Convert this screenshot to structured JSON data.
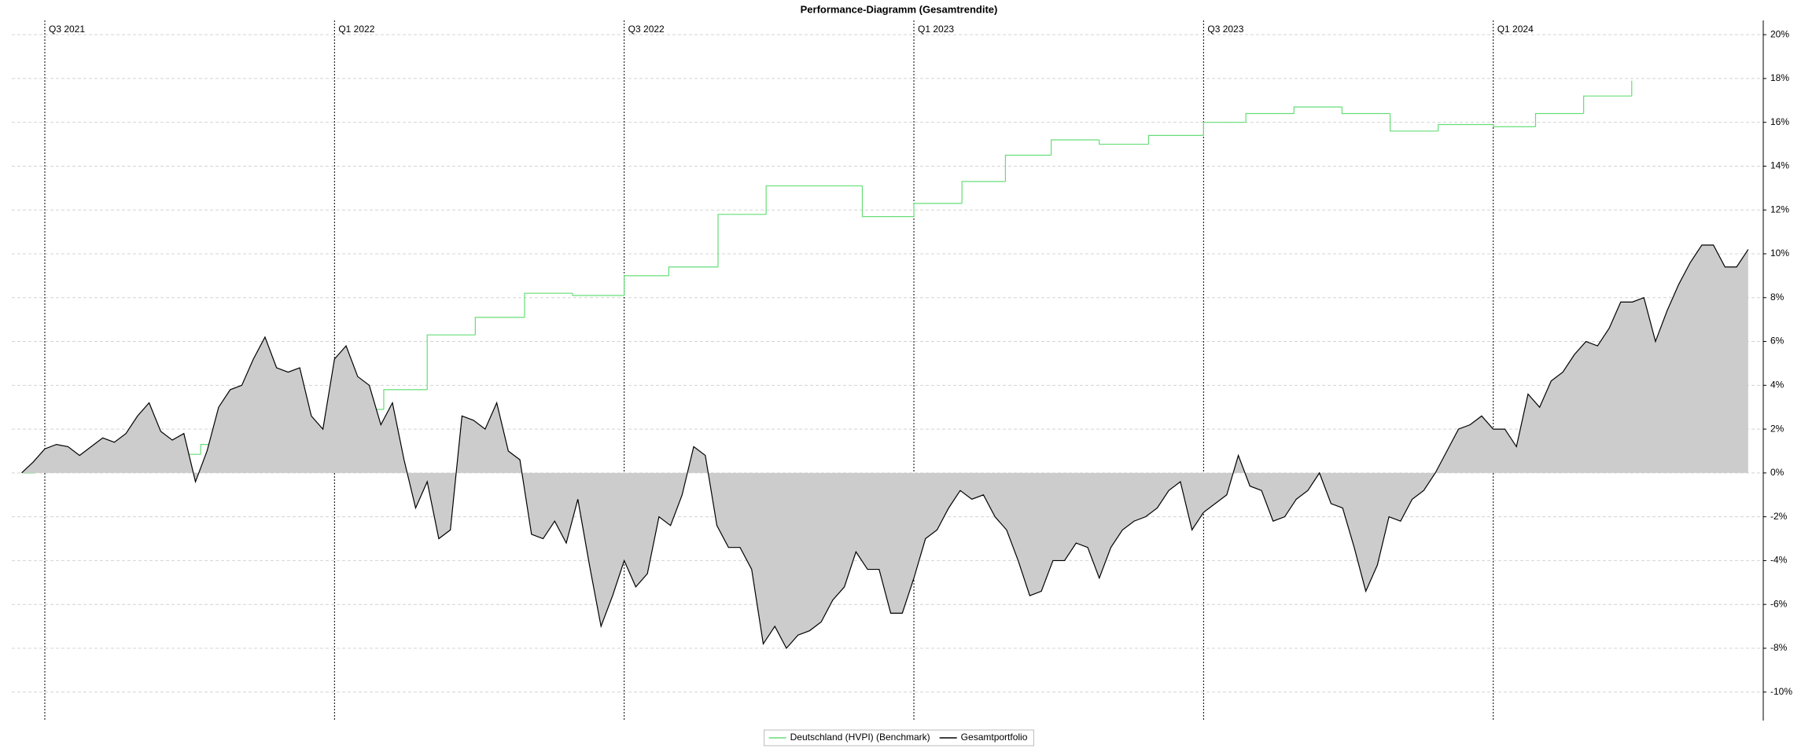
{
  "chart_data": {
    "type": "line",
    "title": "Performance-Diagramm (Gesamtrendite)",
    "xlim": [
      2021.443,
      2024.466
    ],
    "xticks": [
      {
        "value": 2021.5,
        "label": "Q3 2021"
      },
      {
        "value": 2022.0,
        "label": "Q1 2022"
      },
      {
        "value": 2022.5,
        "label": "Q3 2022"
      },
      {
        "value": 2023.0,
        "label": "Q1 2023"
      },
      {
        "value": 2023.5,
        "label": "Q3 2023"
      },
      {
        "value": 2024.0,
        "label": "Q1 2024"
      }
    ],
    "ylim": [
      -11.3,
      20.65
    ],
    "yticks": [
      {
        "value": -10,
        "label": "-10%"
      },
      {
        "value": -8,
        "label": "-8%"
      },
      {
        "value": -6,
        "label": "-6%"
      },
      {
        "value": -4,
        "label": "-4%"
      },
      {
        "value": -2,
        "label": "-2%"
      },
      {
        "value": 0,
        "label": "0%"
      },
      {
        "value": 2,
        "label": "2%"
      },
      {
        "value": 4,
        "label": "4%"
      },
      {
        "value": 6,
        "label": "6%"
      },
      {
        "value": 8,
        "label": "8%"
      },
      {
        "value": 10,
        "label": "10%"
      },
      {
        "value": 12,
        "label": "12%"
      },
      {
        "value": 14,
        "label": "14%"
      },
      {
        "value": 16,
        "label": "16%"
      },
      {
        "value": 18,
        "label": "18%"
      },
      {
        "value": 20,
        "label": "20%"
      }
    ],
    "grid": true,
    "legend": "bottom",
    "series": [
      {
        "name": "Deutschland (HVPI) (Benchmark)",
        "color": "#66dd77",
        "drawstyle": "steps-post",
        "x": [
          2021.462,
          2021.482,
          2021.571,
          2021.67,
          2021.769,
          2021.834,
          2021.917,
          2022.0,
          2022.085,
          2022.16,
          2022.243,
          2022.328,
          2022.411,
          2022.5,
          2022.577,
          2022.662,
          2022.745,
          2022.911,
          2023.0,
          2023.083,
          2023.158,
          2023.237,
          2023.32,
          2023.405,
          2023.5,
          2023.573,
          2023.656,
          2023.739,
          2023.822,
          2023.905,
          2024.0,
          2024.073,
          2024.156,
          2024.239
        ],
        "values": [
          0.0,
          0.5,
          0.6,
          0.85,
          1.3,
          1.6,
          1.9,
          2.9,
          3.8,
          6.3,
          7.1,
          8.2,
          8.1,
          9.0,
          9.4,
          11.8,
          13.1,
          11.7,
          12.3,
          13.3,
          14.5,
          15.2,
          15.0,
          15.4,
          16.0,
          16.4,
          16.7,
          16.4,
          15.6,
          15.9,
          15.8,
          16.4,
          17.2,
          17.9
        ]
      },
      {
        "name": "Gesamtportfolio",
        "color": "#000000",
        "fill": "#cccccc",
        "x": [
          2021.46,
          2021.48,
          2021.5,
          2021.52,
          2021.54,
          2021.56,
          2021.58,
          2021.6,
          2021.62,
          2021.64,
          2021.66,
          2021.68,
          2021.7,
          2021.72,
          2021.74,
          2021.76,
          2021.78,
          2021.8,
          2021.82,
          2021.84,
          2021.86,
          2021.88,
          2021.9,
          2021.92,
          2021.94,
          2021.96,
          2021.98,
          2022.0,
          2022.02,
          2022.04,
          2022.06,
          2022.08,
          2022.1,
          2022.12,
          2022.14,
          2022.16,
          2022.18,
          2022.2,
          2022.22,
          2022.24,
          2022.26,
          2022.28,
          2022.3,
          2022.32,
          2022.34,
          2022.36,
          2022.38,
          2022.4,
          2022.42,
          2022.44,
          2022.46,
          2022.48,
          2022.5,
          2022.52,
          2022.54,
          2022.56,
          2022.58,
          2022.6,
          2022.62,
          2022.64,
          2022.66,
          2022.68,
          2022.7,
          2022.72,
          2022.74,
          2022.76,
          2022.78,
          2022.8,
          2022.82,
          2022.84,
          2022.86,
          2022.88,
          2022.9,
          2022.92,
          2022.94,
          2022.96,
          2022.98,
          2023.0,
          2023.02,
          2023.04,
          2023.06,
          2023.08,
          2023.1,
          2023.12,
          2023.14,
          2023.16,
          2023.18,
          2023.2,
          2023.22,
          2023.24,
          2023.26,
          2023.28,
          2023.3,
          2023.32,
          2023.34,
          2023.36,
          2023.38,
          2023.4,
          2023.42,
          2023.44,
          2023.46,
          2023.48,
          2023.5,
          2023.52,
          2023.54,
          2023.56,
          2023.58,
          2023.6,
          2023.62,
          2023.64,
          2023.66,
          2023.68,
          2023.7,
          2023.72,
          2023.74,
          2023.76,
          2023.78,
          2023.8,
          2023.82,
          2023.84,
          2023.86,
          2023.88,
          2023.9,
          2023.92,
          2023.94,
          2023.96,
          2023.98,
          2024.0,
          2024.02,
          2024.04,
          2024.06,
          2024.08,
          2024.1,
          2024.12,
          2024.14,
          2024.16,
          2024.18,
          2024.2,
          2024.22,
          2024.24,
          2024.26,
          2024.28,
          2024.3,
          2024.32,
          2024.34,
          2024.36,
          2024.38,
          2024.4,
          2024.42,
          2024.44
        ],
        "values": [
          0.0,
          0.5,
          1.1,
          1.3,
          1.2,
          0.8,
          1.2,
          1.6,
          1.4,
          1.8,
          2.6,
          3.2,
          1.9,
          1.5,
          1.8,
          -0.4,
          1.0,
          3.0,
          3.8,
          4.0,
          5.2,
          6.2,
          4.8,
          4.6,
          4.8,
          2.6,
          2.0,
          5.2,
          5.8,
          4.4,
          4.0,
          2.2,
          3.2,
          0.6,
          -1.6,
          -0.4,
          -3.0,
          -2.6,
          2.6,
          2.4,
          2.0,
          3.2,
          1.0,
          0.6,
          -2.8,
          -3.0,
          -2.2,
          -3.2,
          -1.2,
          -4.2,
          -7.0,
          -5.6,
          -4.0,
          -5.2,
          -4.6,
          -2.0,
          -2.4,
          -1.0,
          1.2,
          0.8,
          -2.4,
          -3.4,
          -3.4,
          -4.4,
          -7.8,
          -7.0,
          -8.0,
          -7.4,
          -7.2,
          -6.8,
          -5.8,
          -5.2,
          -3.6,
          -4.4,
          -4.4,
          -6.4,
          -6.4,
          -4.8,
          -3.0,
          -2.6,
          -1.6,
          -0.8,
          -1.2,
          -1.0,
          -2.0,
          -2.6,
          -4.0,
          -5.6,
          -5.4,
          -4.0,
          -4.0,
          -3.2,
          -3.4,
          -4.8,
          -3.4,
          -2.6,
          -2.2,
          -2.0,
          -1.6,
          -0.8,
          -0.4,
          -2.6,
          -1.8,
          -1.4,
          -1.0,
          0.8,
          -0.6,
          -0.8,
          -2.2,
          -2.0,
          -1.2,
          -0.8,
          0.0,
          -1.4,
          -1.6,
          -3.4,
          -5.4,
          -4.2,
          -2.0,
          -2.2,
          -1.2,
          -0.8,
          0.0,
          1.0,
          2.0,
          2.2,
          2.6,
          2.0,
          2.0,
          1.2,
          3.6,
          3.0,
          4.2,
          4.6,
          5.4,
          6.0,
          5.8,
          6.6,
          7.8,
          7.8,
          8.0,
          6.0,
          7.4,
          8.6,
          9.6,
          10.4,
          10.4,
          9.4,
          9.4,
          10.2
        ]
      }
    ]
  }
}
